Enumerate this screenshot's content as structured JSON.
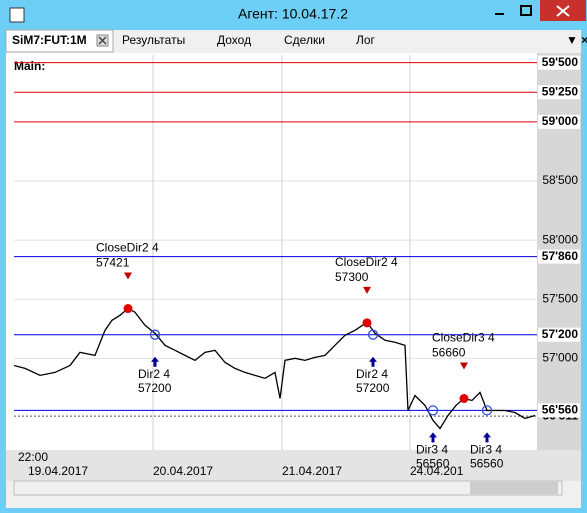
{
  "window": {
    "title": "Агент: 10.04.17.2"
  },
  "tabs": [
    "SiM7:FUT:1M",
    "Результаты",
    "Доход",
    "Сделки",
    "Лог"
  ],
  "chart_data": {
    "type": "line",
    "title": "Main:",
    "color": "#000000",
    "x": [
      0,
      11,
      26,
      41,
      56,
      66,
      81,
      91,
      98,
      106,
      114,
      121,
      131,
      141,
      151,
      161,
      171,
      181,
      191,
      201,
      211,
      221,
      231,
      241,
      251,
      261,
      266,
      271,
      281,
      291,
      301,
      311,
      321,
      331,
      341,
      353,
      361,
      371,
      381,
      391,
      394,
      401,
      411,
      419,
      426,
      434,
      442,
      450,
      458,
      466,
      473,
      481,
      491,
      501,
      511,
      521
    ],
    "values": [
      56940,
      56915,
      56856,
      56881,
      56940,
      57051,
      57025,
      57237,
      57322,
      57364,
      57421,
      57390,
      57280,
      57212,
      57110,
      57068,
      57025,
      56983,
      57051,
      57068,
      56966,
      56915,
      56881,
      56856,
      56831,
      56881,
      56661,
      56983,
      57000,
      56983,
      57008,
      57025,
      57110,
      57195,
      57237,
      57305,
      57212,
      57153,
      57136,
      57110,
      56559,
      56686,
      56602,
      56475,
      56407,
      56517,
      56602,
      56661,
      56644,
      56712,
      56559,
      56559,
      56559,
      56542,
      56492,
      56517
    ],
    "xlim": [
      0,
      523
    ],
    "ylim": [
      56225,
      59565
    ],
    "yticks": [
      {
        "value": 58500,
        "label": "58'500"
      },
      {
        "value": 58000,
        "label": "58'000"
      },
      {
        "value": 57500,
        "label": "57'500"
      },
      {
        "value": 57000,
        "label": "57'000"
      }
    ],
    "levels": [
      {
        "value": 56511,
        "label": "56'511",
        "color": "#000000"
      },
      {
        "value": 59500,
        "label": "59'500",
        "color": "#e00000"
      },
      {
        "value": 59250,
        "label": "59'250",
        "color": "#e00000"
      },
      {
        "value": 59000,
        "label": "59'000",
        "color": "#e00000"
      },
      {
        "value": 57860,
        "label": "57'860",
        "color": "#0000e0"
      },
      {
        "value": 57200,
        "label": "57'200",
        "color": "#0000e0"
      },
      {
        "value": 56560,
        "label": "56'560",
        "color": "#0000e0"
      }
    ],
    "start_time": "22:00",
    "xticks": [
      {
        "value": 0,
        "label": "19.04.2017"
      },
      {
        "value": 139,
        "label": "20.04.2017"
      },
      {
        "value": 268,
        "label": "21.04.2017"
      },
      {
        "value": 396,
        "label": "24.04.201"
      }
    ],
    "annotations": [
      {
        "kind": "close",
        "label": "CloseDir2 4",
        "x": 114,
        "value": 57421
      },
      {
        "kind": "open",
        "label": "Dir2 4",
        "x": 141,
        "value": 57200
      },
      {
        "kind": "close",
        "label": "CloseDir2 4",
        "x": 353,
        "value": 57300
      },
      {
        "kind": "open",
        "label": "Dir2 4",
        "x": 359,
        "value": 57200
      },
      {
        "kind": "close",
        "label": "CloseDir3 4",
        "x": 450,
        "value": 56660
      },
      {
        "kind": "open",
        "label": "Dir3 4",
        "x": 419,
        "value": 56560
      },
      {
        "kind": "open",
        "label": "Dir3 4",
        "x": 473,
        "value": 56560
      }
    ]
  }
}
